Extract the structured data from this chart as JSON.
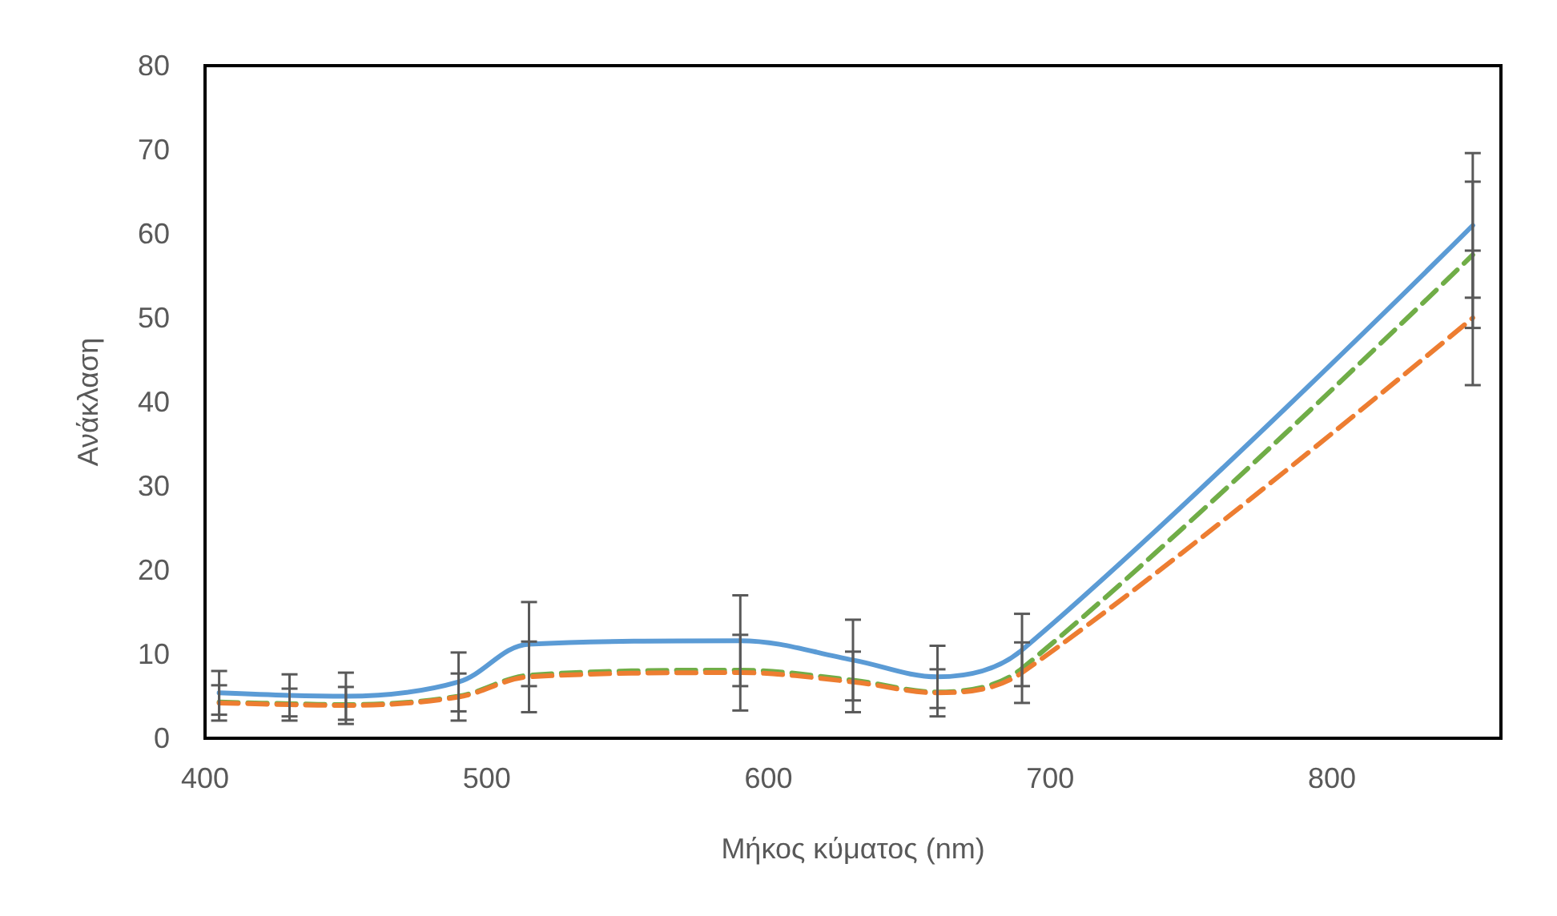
{
  "chart_data": {
    "type": "line",
    "xlabel": "Μήκος κύματος (nm)",
    "ylabel": "Ανάκλαση",
    "x": [
      405,
      430,
      450,
      490,
      515,
      590,
      630,
      660,
      690,
      850
    ],
    "series": [
      {
        "color": "#5b9bd5",
        "line_style": "solid",
        "values": [
          5.4,
          5.1,
          5.0,
          6.7,
          11.2,
          11.6,
          9.3,
          7.3,
          10.5,
          61.0
        ],
        "errors": [
          2.6,
          2.5,
          2.8,
          3.5,
          5.0,
          5.4,
          4.8,
          3.7,
          4.3,
          8.6
        ]
      },
      {
        "color": "#70ad47",
        "line_style": "dashed",
        "values": [
          4.3,
          4.1,
          4.0,
          5.0,
          7.5,
          8.1,
          6.9,
          5.5,
          8.3,
          57.5
        ],
        "errors": [
          null,
          null,
          null,
          null,
          null,
          null,
          null,
          null,
          null,
          8.7
        ]
      },
      {
        "color": "#ed7d31",
        "line_style": "dashed",
        "values": [
          4.2,
          4.0,
          3.9,
          4.9,
          7.3,
          7.8,
          6.7,
          5.4,
          7.8,
          50.0
        ],
        "errors": [
          2.1,
          1.9,
          2.2,
          2.8,
          4.2,
          4.5,
          3.6,
          2.8,
          3.6,
          8.0
        ]
      }
    ],
    "xlim": [
      400,
      860
    ],
    "xticks": [
      400,
      500,
      600,
      700,
      800
    ],
    "ylim": [
      0,
      80
    ],
    "yticks": [
      0,
      10,
      20,
      30,
      40,
      50,
      60,
      70,
      80
    ],
    "grid": false,
    "marker": "none"
  }
}
